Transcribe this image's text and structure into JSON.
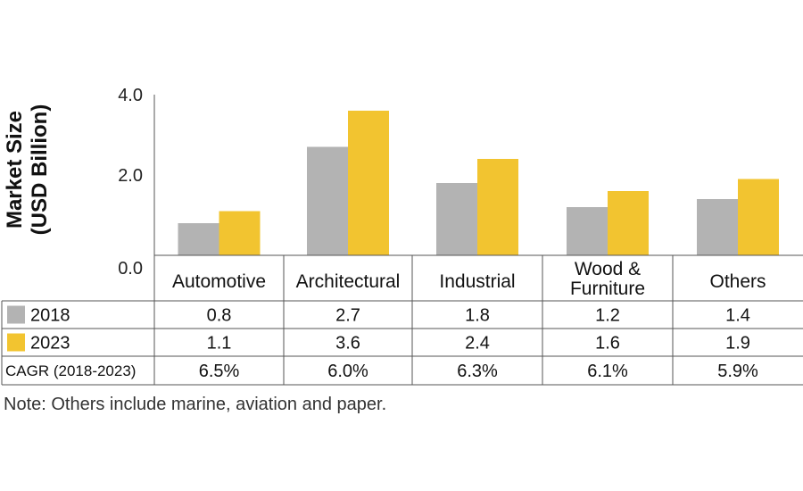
{
  "chart_data": {
    "type": "bar",
    "ylabel_lines": [
      "Market Size",
      "(USD Billion)"
    ],
    "ylim": [
      0,
      4.0
    ],
    "yticks": [
      "0.0",
      "2.0",
      "4.0"
    ],
    "categories": [
      [
        "Automotive"
      ],
      [
        "Architectural"
      ],
      [
        "Industrial"
      ],
      [
        "Wood &",
        "Furniture"
      ],
      [
        "Others"
      ]
    ],
    "series": [
      {
        "name": "2018",
        "values": [
          0.8,
          2.7,
          1.8,
          1.2,
          1.4
        ],
        "labels": [
          "0.8",
          "2.7",
          "1.8",
          "1.2",
          "1.4"
        ],
        "color": "#b3b3b3"
      },
      {
        "name": "2023",
        "values": [
          1.1,
          3.6,
          2.4,
          1.6,
          1.9
        ],
        "labels": [
          "1.1",
          "3.6",
          "2.4",
          "1.6",
          "1.9"
        ],
        "color": "#f2c430"
      }
    ],
    "cagr": {
      "label": "CAGR (2018-2023)",
      "values": [
        "6.5%",
        "6.0%",
        "6.3%",
        "6.1%",
        "5.9%"
      ]
    },
    "note": "Note: Others include marine, aviation and paper.",
    "grid": false
  }
}
